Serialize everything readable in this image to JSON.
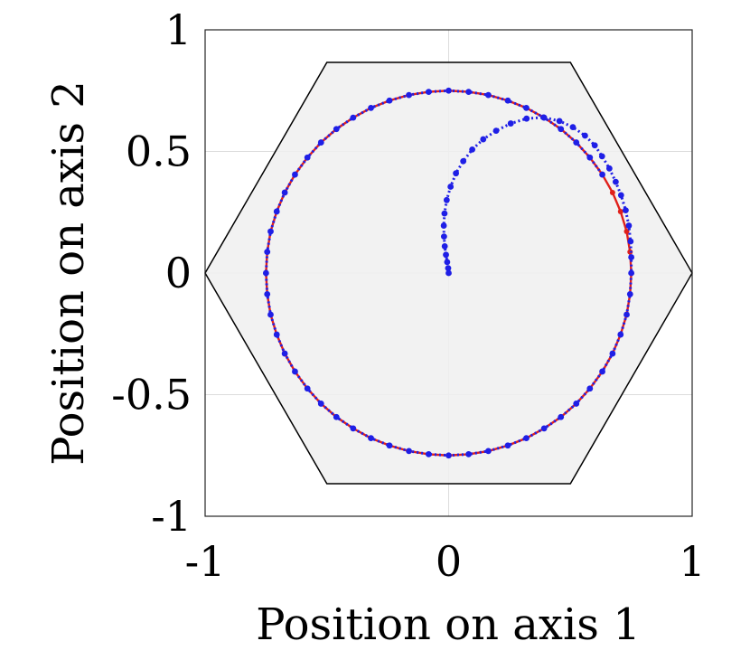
{
  "chart_data": {
    "type": "scatter",
    "title": "",
    "xlabel": "Position on axis 1",
    "ylabel": "Position on axis 2",
    "xlim": [
      -1,
      1
    ],
    "ylim": [
      -1,
      1
    ],
    "xticks": [
      -1,
      0,
      1
    ],
    "yticks": [
      -1,
      -0.5,
      0,
      0.5,
      1
    ],
    "x_tick_labels": [
      "-1",
      "0",
      "1"
    ],
    "y_tick_labels": [
      "-1",
      "-0.5",
      "0",
      "0.5",
      "1"
    ],
    "grid": true,
    "background_region": {
      "shape": "hexagon",
      "fill": "#f0f0f0",
      "stroke": "#000000",
      "vertices": [
        [
          -1,
          0
        ],
        [
          -0.5,
          0.866
        ],
        [
          0.5,
          0.866
        ],
        [
          1,
          0
        ],
        [
          0.5,
          -0.866
        ],
        [
          -0.5,
          -0.866
        ]
      ]
    },
    "series": [
      {
        "color": "#e0201b",
        "style": "solid line with dot markers",
        "points": [
          [
            0.75,
            0
          ],
          [
            0.745,
            0.087
          ],
          [
            0.731,
            0.171
          ],
          [
            0.706,
            0.253
          ],
          [
            0.673,
            0.331
          ],
          [
            0.631,
            0.405
          ],
          [
            0.58,
            0.475
          ],
          [
            0.524,
            0.537
          ],
          [
            0.461,
            0.592
          ],
          [
            0.392,
            0.639
          ],
          [
            0.319,
            0.679
          ],
          [
            0.243,
            0.709
          ],
          [
            0.163,
            0.732
          ],
          [
            0.082,
            0.745
          ],
          [
            0,
            0.75
          ],
          [
            -0.082,
            0.745
          ],
          [
            -0.163,
            0.732
          ],
          [
            -0.243,
            0.709
          ],
          [
            -0.319,
            0.679
          ],
          [
            -0.392,
            0.639
          ],
          [
            -0.461,
            0.592
          ],
          [
            -0.524,
            0.537
          ],
          [
            -0.58,
            0.475
          ],
          [
            -0.631,
            0.405
          ],
          [
            -0.673,
            0.331
          ],
          [
            -0.706,
            0.253
          ],
          [
            -0.731,
            0.171
          ],
          [
            -0.745,
            0.087
          ],
          [
            -0.75,
            0
          ],
          [
            -0.745,
            -0.087
          ],
          [
            -0.731,
            -0.171
          ],
          [
            -0.706,
            -0.253
          ],
          [
            -0.673,
            -0.331
          ],
          [
            -0.631,
            -0.405
          ],
          [
            -0.58,
            -0.475
          ],
          [
            -0.524,
            -0.537
          ],
          [
            -0.461,
            -0.592
          ],
          [
            -0.392,
            -0.639
          ],
          [
            -0.319,
            -0.679
          ],
          [
            -0.243,
            -0.709
          ],
          [
            -0.163,
            -0.732
          ],
          [
            -0.082,
            -0.745
          ],
          [
            0,
            -0.75
          ],
          [
            0.082,
            -0.745
          ],
          [
            0.163,
            -0.732
          ],
          [
            0.243,
            -0.709
          ],
          [
            0.319,
            -0.679
          ],
          [
            0.392,
            -0.639
          ],
          [
            0.461,
            -0.592
          ],
          [
            0.524,
            -0.537
          ],
          [
            0.58,
            -0.475
          ],
          [
            0.631,
            -0.405
          ],
          [
            0.673,
            -0.331
          ],
          [
            0.706,
            -0.253
          ],
          [
            0.731,
            -0.171
          ],
          [
            0.745,
            -0.087
          ],
          [
            0.75,
            0
          ]
        ]
      },
      {
        "color": "#1f1fe6",
        "style": "dotted line with dot markers",
        "points": [
          [
            0,
            0
          ],
          [
            -0.002,
            0.02
          ],
          [
            -0.006,
            0.045
          ],
          [
            -0.011,
            0.075
          ],
          [
            -0.016,
            0.11
          ],
          [
            -0.019,
            0.15
          ],
          [
            -0.02,
            0.195
          ],
          [
            -0.017,
            0.245
          ],
          [
            -0.008,
            0.3
          ],
          [
            0.008,
            0.355
          ],
          [
            0.03,
            0.41
          ],
          [
            0.06,
            0.46
          ],
          [
            0.097,
            0.508
          ],
          [
            0.142,
            0.55
          ],
          [
            0.195,
            0.585
          ],
          [
            0.255,
            0.615
          ],
          [
            0.32,
            0.635
          ],
          [
            0.39,
            0.64
          ],
          [
            0.455,
            0.625
          ],
          [
            0.51,
            0.6
          ],
          [
            0.56,
            0.565
          ],
          [
            0.6,
            0.525
          ],
          [
            0.63,
            0.48
          ],
          [
            0.66,
            0.43
          ],
          [
            0.686,
            0.375
          ],
          [
            0.708,
            0.32
          ],
          [
            0.727,
            0.258
          ],
          [
            0.74,
            0.195
          ],
          [
            0.747,
            0.13
          ],
          [
            0.75,
            0.065
          ],
          [
            0.75,
            0
          ],
          [
            0.745,
            -0.087
          ],
          [
            0.731,
            -0.171
          ],
          [
            0.706,
            -0.253
          ],
          [
            0.673,
            -0.331
          ],
          [
            0.631,
            -0.405
          ],
          [
            0.58,
            -0.475
          ],
          [
            0.524,
            -0.537
          ],
          [
            0.461,
            -0.592
          ],
          [
            0.392,
            -0.639
          ],
          [
            0.319,
            -0.679
          ],
          [
            0.243,
            -0.709
          ],
          [
            0.163,
            -0.732
          ],
          [
            0.082,
            -0.745
          ],
          [
            0,
            -0.75
          ],
          [
            -0.082,
            -0.745
          ],
          [
            -0.163,
            -0.732
          ],
          [
            -0.243,
            -0.709
          ],
          [
            -0.319,
            -0.679
          ],
          [
            -0.392,
            -0.639
          ],
          [
            -0.461,
            -0.592
          ],
          [
            -0.524,
            -0.537
          ],
          [
            -0.58,
            -0.475
          ],
          [
            -0.631,
            -0.405
          ],
          [
            -0.673,
            -0.331
          ],
          [
            -0.706,
            -0.253
          ],
          [
            -0.731,
            -0.171
          ],
          [
            -0.745,
            -0.087
          ],
          [
            -0.75,
            0
          ],
          [
            -0.745,
            0.087
          ],
          [
            -0.731,
            0.171
          ],
          [
            -0.706,
            0.253
          ],
          [
            -0.673,
            0.331
          ],
          [
            -0.631,
            0.405
          ],
          [
            -0.58,
            0.475
          ],
          [
            -0.524,
            0.537
          ],
          [
            -0.461,
            0.592
          ],
          [
            -0.392,
            0.639
          ],
          [
            -0.319,
            0.679
          ],
          [
            -0.243,
            0.709
          ],
          [
            -0.163,
            0.732
          ],
          [
            -0.082,
            0.745
          ],
          [
            0,
            0.75
          ],
          [
            0.082,
            0.745
          ],
          [
            0.163,
            0.732
          ],
          [
            0.243,
            0.709
          ],
          [
            0.319,
            0.679
          ],
          [
            0.392,
            0.639
          ],
          [
            0.461,
            0.592
          ],
          [
            0.524,
            0.537
          ],
          [
            0.58,
            0.475
          ],
          [
            0.631,
            0.405
          ]
        ]
      }
    ]
  }
}
